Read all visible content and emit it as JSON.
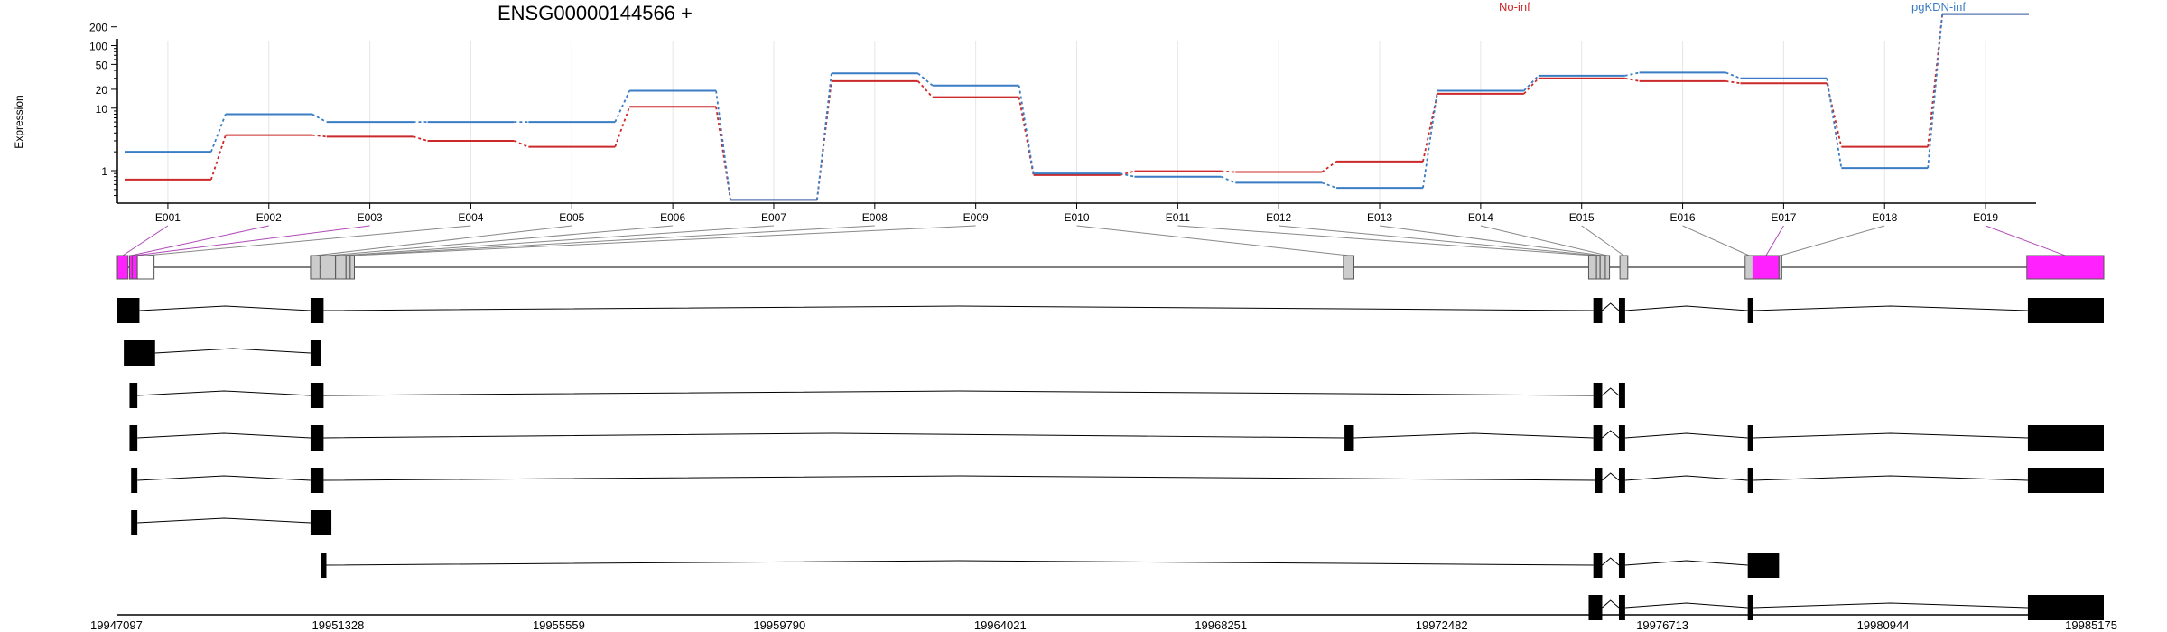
{
  "chart_data": {
    "type": "line",
    "title": "ENSG00000144566 +",
    "ylabel": "Expression",
    "y_scale": "log",
    "y_ticks": [
      1,
      10,
      20,
      50,
      100,
      200
    ],
    "categories": [
      "E001",
      "E002",
      "E003",
      "E004",
      "E005",
      "E006",
      "E007",
      "E008",
      "E009",
      "E010",
      "E011",
      "E012",
      "E013",
      "E014",
      "E015",
      "E016",
      "E017",
      "E018",
      "E019"
    ],
    "series": [
      {
        "name": "No-inf",
        "color": "#cc2a2a",
        "values": [
          0.72,
          3.7,
          3.5,
          3.0,
          2.4,
          10.5,
          0.34,
          27,
          15,
          0.85,
          0.98,
          0.95,
          1.4,
          17,
          30,
          27,
          25,
          2.4,
          320
        ]
      },
      {
        "name": "pgKDN-inf",
        "color": "#3a7dc4",
        "values": [
          2.0,
          8.0,
          6.0,
          6.0,
          6.0,
          19,
          0.34,
          36,
          23,
          0.9,
          0.8,
          0.64,
          0.53,
          19,
          33,
          37,
          30,
          1.1,
          320
        ]
      }
    ],
    "genomic_axis": {
      "labels": [
        "19947097",
        "19951328",
        "19955559",
        "19959790",
        "19964021",
        "19968251",
        "19972482",
        "19976713",
        "19980944",
        "19985175"
      ],
      "min": 19947097,
      "max": 19985175
    },
    "exons": [
      {
        "id": "E001",
        "start": 19947097,
        "end": 19947300,
        "color": "#ff22ff"
      },
      {
        "id": "E002",
        "start": 19947330,
        "end": 19947380,
        "color": "#ff22ff"
      },
      {
        "id": "E003",
        "start": 19947380,
        "end": 19947480,
        "color": "#ff22ff"
      },
      {
        "id": "E004",
        "start": 19947480,
        "end": 19947800,
        "color": "#ffffff"
      },
      {
        "id": "E005",
        "start": 19950800,
        "end": 19950980,
        "color": "#cccccc"
      },
      {
        "id": "E006",
        "start": 19951000,
        "end": 19951280,
        "color": "#cccccc"
      },
      {
        "id": "E007",
        "start": 19951280,
        "end": 19951480,
        "color": "#cccccc"
      },
      {
        "id": "E008",
        "start": 19951480,
        "end": 19951560,
        "color": "#cccccc"
      },
      {
        "id": "E009",
        "start": 19951560,
        "end": 19951640,
        "color": "#cccccc"
      },
      {
        "id": "E010",
        "start": 19970600,
        "end": 19970800,
        "color": "#cccccc"
      },
      {
        "id": "E011",
        "start": 19975300,
        "end": 19975450,
        "color": "#cccccc"
      },
      {
        "id": "E012",
        "start": 19975450,
        "end": 19975520,
        "color": "#cccccc"
      },
      {
        "id": "E013",
        "start": 19975520,
        "end": 19975620,
        "color": "#cccccc"
      },
      {
        "id": "E014",
        "start": 19975620,
        "end": 19975700,
        "color": "#cccccc"
      },
      {
        "id": "E015",
        "start": 19975900,
        "end": 19976050,
        "color": "#cccccc"
      },
      {
        "id": "E016",
        "start": 19978300,
        "end": 19978450,
        "color": "#cccccc"
      },
      {
        "id": "E017",
        "start": 19978450,
        "end": 19978950,
        "color": "#ff22ff"
      },
      {
        "id": "E018",
        "start": 19978950,
        "end": 19979000,
        "color": "#cccccc"
      },
      {
        "id": "E019",
        "start": 19983700,
        "end": 19985175,
        "color": "#ff22ff"
      }
    ],
    "transcripts": [
      [
        [
          19947097,
          19947520
        ],
        [
          19950800,
          19951050
        ],
        [
          19975390,
          19975560
        ],
        [
          19975880,
          19976000
        ],
        [
          19978350,
          19978450
        ],
        [
          19983720,
          19985175
        ]
      ],
      [
        [
          19947220,
          19947820
        ],
        [
          19950800,
          19951000
        ]
      ],
      [
        [
          19947330,
          19947480
        ],
        [
          19950800,
          19951050
        ],
        [
          19975390,
          19975560
        ],
        [
          19975880,
          19976000
        ]
      ],
      [
        [
          19947330,
          19947480
        ],
        [
          19950800,
          19951050
        ],
        [
          19970620,
          19970800
        ],
        [
          19975390,
          19975560
        ],
        [
          19975880,
          19976000
        ],
        [
          19978350,
          19978450
        ],
        [
          19983720,
          19985175
        ]
      ],
      [
        [
          19947360,
          19947480
        ],
        [
          19950800,
          19951050
        ],
        [
          19975430,
          19975560
        ],
        [
          19975880,
          19976000
        ],
        [
          19978350,
          19978450
        ],
        [
          19983720,
          19985175
        ]
      ],
      [
        [
          19947360,
          19947480
        ],
        [
          19950800,
          19951200
        ]
      ],
      [
        [
          19951000,
          19951060
        ],
        [
          19975390,
          19975560
        ],
        [
          19975880,
          19976000
        ],
        [
          19978350,
          19978950
        ]
      ],
      [
        [
          19975300,
          19975560
        ],
        [
          19975880,
          19976000
        ],
        [
          19978350,
          19978450
        ],
        [
          19983720,
          19985175
        ]
      ]
    ]
  }
}
